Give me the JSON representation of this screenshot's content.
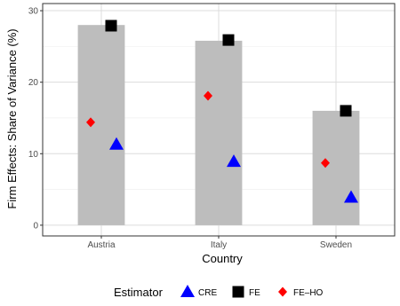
{
  "chart_data": {
    "type": "bar",
    "categories": [
      "Austria",
      "Italy",
      "Sweden"
    ],
    "xlabel": "Country",
    "ylabel": "Firm Effects: Share of Variance (%)",
    "ylim": [
      -1.5,
      31
    ],
    "yticks": [
      0,
      10,
      20,
      30
    ],
    "grid": true,
    "legend_position": "bottom",
    "bars": {
      "values": [
        28,
        25.8,
        16
      ],
      "color": "#bdbdbd"
    },
    "series": [
      {
        "name": "CRE",
        "marker": "triangle",
        "color": "#0000ff",
        "values": [
          11.3,
          8.9,
          3.9
        ]
      },
      {
        "name": "FE",
        "marker": "square",
        "color": "#000000",
        "values": [
          27.9,
          25.9,
          16.0
        ]
      },
      {
        "name": "FE–HO",
        "marker": "diamond",
        "color": "#ff0000",
        "values": [
          14.4,
          18.1,
          8.7
        ]
      }
    ]
  },
  "legend": {
    "title": "Estimator",
    "items": [
      "CRE",
      "FE",
      "FE–HO"
    ]
  }
}
